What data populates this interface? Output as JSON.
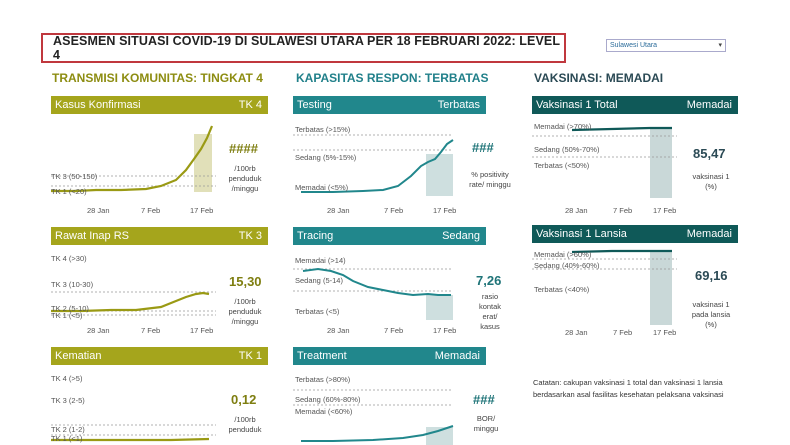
{
  "header": {
    "title": "ASESMEN SITUASI COVID-19 DI SULAWESI UTARA PER 18 FEBRUARI 2022: LEVEL 4",
    "region_select": "Sulawesi Utara"
  },
  "sections": {
    "transmisi": "TRANSMISI KOMUNITAS: TINGKAT 4",
    "kapasitas": "KAPASITAS RESPON: TERBATAS",
    "vaksinasi": "VAKSINASI: MEMADAI"
  },
  "dates": [
    "28 Jan",
    "7 Feb",
    "17 Feb"
  ],
  "kasus": {
    "name": "Kasus Konfirmasi",
    "level": "TK 4",
    "levels": [
      "TK 3 (50-150)",
      "TK 1 (<20)"
    ],
    "value": "####",
    "unit": [
      "/100rb",
      "penduduk",
      "/minggu"
    ]
  },
  "rawat": {
    "name": "Rawat Inap RS",
    "level": "TK 3",
    "levels": [
      "TK 4 (>30)",
      "TK 3 (10-30)",
      "TK 2 (5-10)",
      "TK 1 (<5)"
    ],
    "value": "15,30",
    "unit": [
      "/100rb",
      "penduduk",
      "/minggu"
    ]
  },
  "kematian": {
    "name": "Kematian",
    "level": "TK 1",
    "levels": [
      "TK 4 (>5)",
      "TK 3 (2-5)",
      "TK 2 (1-2)",
      "TK 1 (<1)"
    ],
    "value": "0,12",
    "unit": [
      "/100rb",
      "penduduk"
    ]
  },
  "testing": {
    "name": "Testing",
    "status": "Terbatas",
    "levels": [
      "Terbatas (>15%)",
      "Sedang (5%-15%)",
      "Memadai (<5%)"
    ],
    "value": "###",
    "unit": [
      "% positivity",
      "rate/ minggu"
    ]
  },
  "tracing": {
    "name": "Tracing",
    "status": "Sedang",
    "levels": [
      "Memadai (>14)",
      "Sedang (5-14)",
      "Terbatas (<5)"
    ],
    "value": "7,26",
    "unit": [
      "rasio",
      "kontak",
      "erat/",
      "kasus"
    ]
  },
  "treatment": {
    "name": "Treatment",
    "status": "Memadai",
    "levels": [
      "Terbatas (>80%)",
      "Sedang (60%-80%)",
      "Memadai (<60%)"
    ],
    "value": "###",
    "unit": [
      "BOR/",
      "minggu"
    ]
  },
  "vaks1": {
    "name": "Vaksinasi 1 Total",
    "status": "Memadai",
    "levels": [
      "Memadai (>70%)",
      "Sedang (50%-70%)",
      "Terbatas (<50%)"
    ],
    "value": "85,47",
    "unit": [
      "vaksinasi 1",
      "(%)"
    ]
  },
  "vakslansia": {
    "name": "Vaksinasi 1 Lansia",
    "status": "Memadai",
    "levels": [
      "Memadai (>60%)",
      "Sedang (40%-60%)",
      "Terbatas (<40%)"
    ],
    "value": "69,16",
    "unit": [
      "vaksinasi 1",
      "pada lansia",
      "(%)"
    ]
  },
  "note": "Catatan: cakupan vaksinasi 1 total dan vaksinasi 1 lansia berdasarkan asal fasilitas kesehatan pelaksana vaksinasi",
  "colors": {
    "olive": "#a5a51c",
    "teal": "#21878c",
    "dark": "#0f5958"
  }
}
